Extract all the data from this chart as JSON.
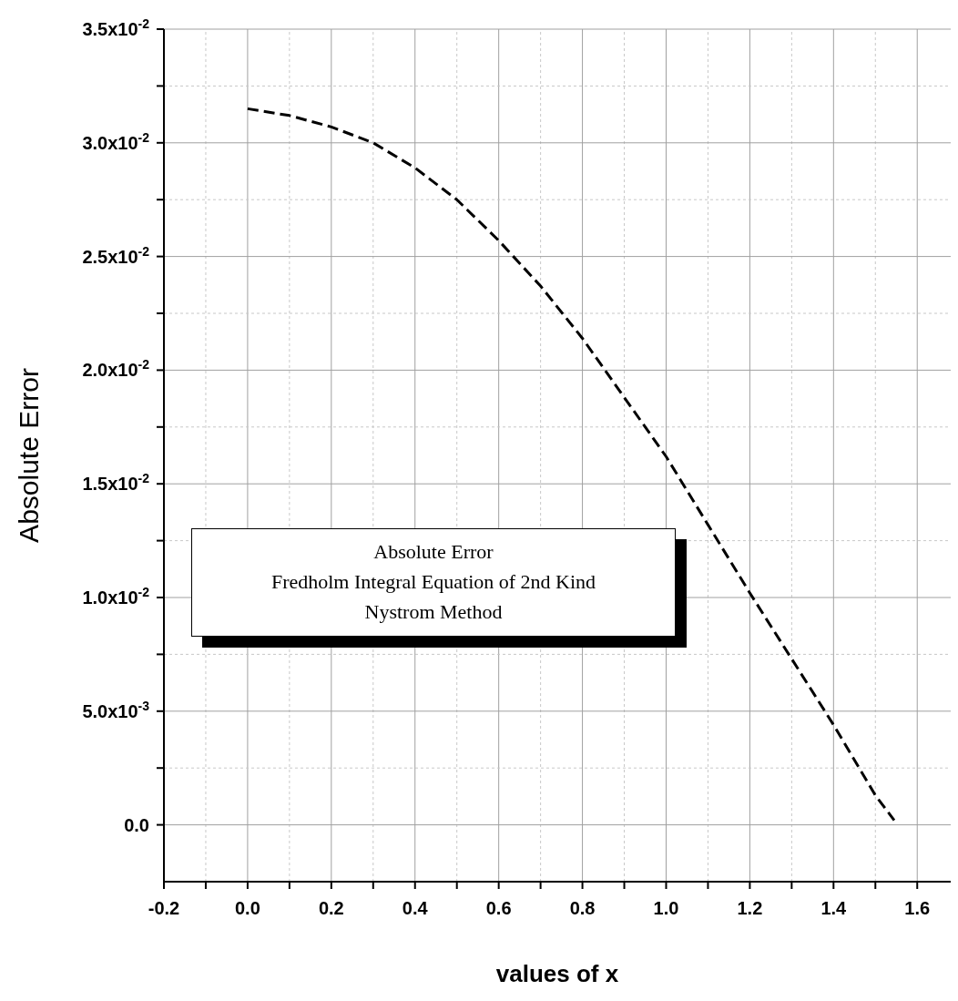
{
  "chart_data": {
    "type": "line",
    "xlabel": "values of x",
    "ylabel": "Absolute Error",
    "annotations": [
      "Absolute Error",
      "Fredholm Integral Equation of 2nd Kind",
      "Nystrom Method"
    ],
    "x": [
      0,
      0.1,
      0.2,
      0.3,
      0.4,
      0.5,
      0.6,
      0.7,
      0.8,
      0.9,
      1.0,
      1.1,
      1.2,
      1.3,
      1.4,
      1.5,
      1.545
    ],
    "series": [
      {
        "color": "#000000",
        "values": [
          0.0315,
          0.0312,
          0.0307,
          0.03,
          0.0289,
          0.0275,
          0.0257,
          0.0237,
          0.0214,
          0.0188,
          0.0162,
          0.0132,
          0.0102,
          0.0073,
          0.0044,
          0.0013,
          0.0002
        ]
      }
    ],
    "line_style": "dashed",
    "grid": true,
    "xlim": [
      -0.2,
      1.68
    ],
    "xticks": [
      {
        "value": -0.2,
        "label": "-0.2"
      },
      {
        "value": -0.1,
        "label": null
      },
      {
        "value": 0,
        "label": "0.0"
      },
      {
        "value": 0.1,
        "label": null
      },
      {
        "value": 0.2,
        "label": "0.2"
      },
      {
        "value": 0.3,
        "label": null
      },
      {
        "value": 0.4,
        "label": "0.4"
      },
      {
        "value": 0.5,
        "label": null
      },
      {
        "value": 0.6,
        "label": "0.6"
      },
      {
        "value": 0.7,
        "label": null
      },
      {
        "value": 0.8,
        "label": "0.8"
      },
      {
        "value": 0.9,
        "label": null
      },
      {
        "value": 1.0,
        "label": "1.0"
      },
      {
        "value": 1.1,
        "label": null
      },
      {
        "value": 1.2,
        "label": "1.2"
      },
      {
        "value": 1.3,
        "label": null
      },
      {
        "value": 1.4,
        "label": "1.4"
      },
      {
        "value": 1.5,
        "label": null
      },
      {
        "value": 1.6,
        "label": "1.6"
      }
    ],
    "ylim": [
      -0.0025,
      0.035
    ],
    "yticks": [
      {
        "value": 0,
        "label": "0.0"
      },
      {
        "value": 0.0025,
        "label": null
      },
      {
        "value": 0.005,
        "label": "5.0x10$^{-3}$"
      },
      {
        "value": 0.0075,
        "label": null
      },
      {
        "value": 0.01,
        "label": "1.0x10$^{-2}$"
      },
      {
        "value": 0.0125,
        "label": null
      },
      {
        "value": 0.015,
        "label": "1.5x10$^{-2}$"
      },
      {
        "value": 0.0175,
        "label": null
      },
      {
        "value": 0.02,
        "label": "2.0x10$^{-2}$"
      },
      {
        "value": 0.0225,
        "label": null
      },
      {
        "value": 0.025,
        "label": "2.5x10$^{-2}$"
      },
      {
        "value": 0.0275,
        "label": null
      },
      {
        "value": 0.03,
        "label": "3.0x10$^{-2}$"
      },
      {
        "value": 0.0325,
        "label": null
      },
      {
        "value": 0.035,
        "label": "3.5x10$^{-2}$"
      }
    ]
  }
}
